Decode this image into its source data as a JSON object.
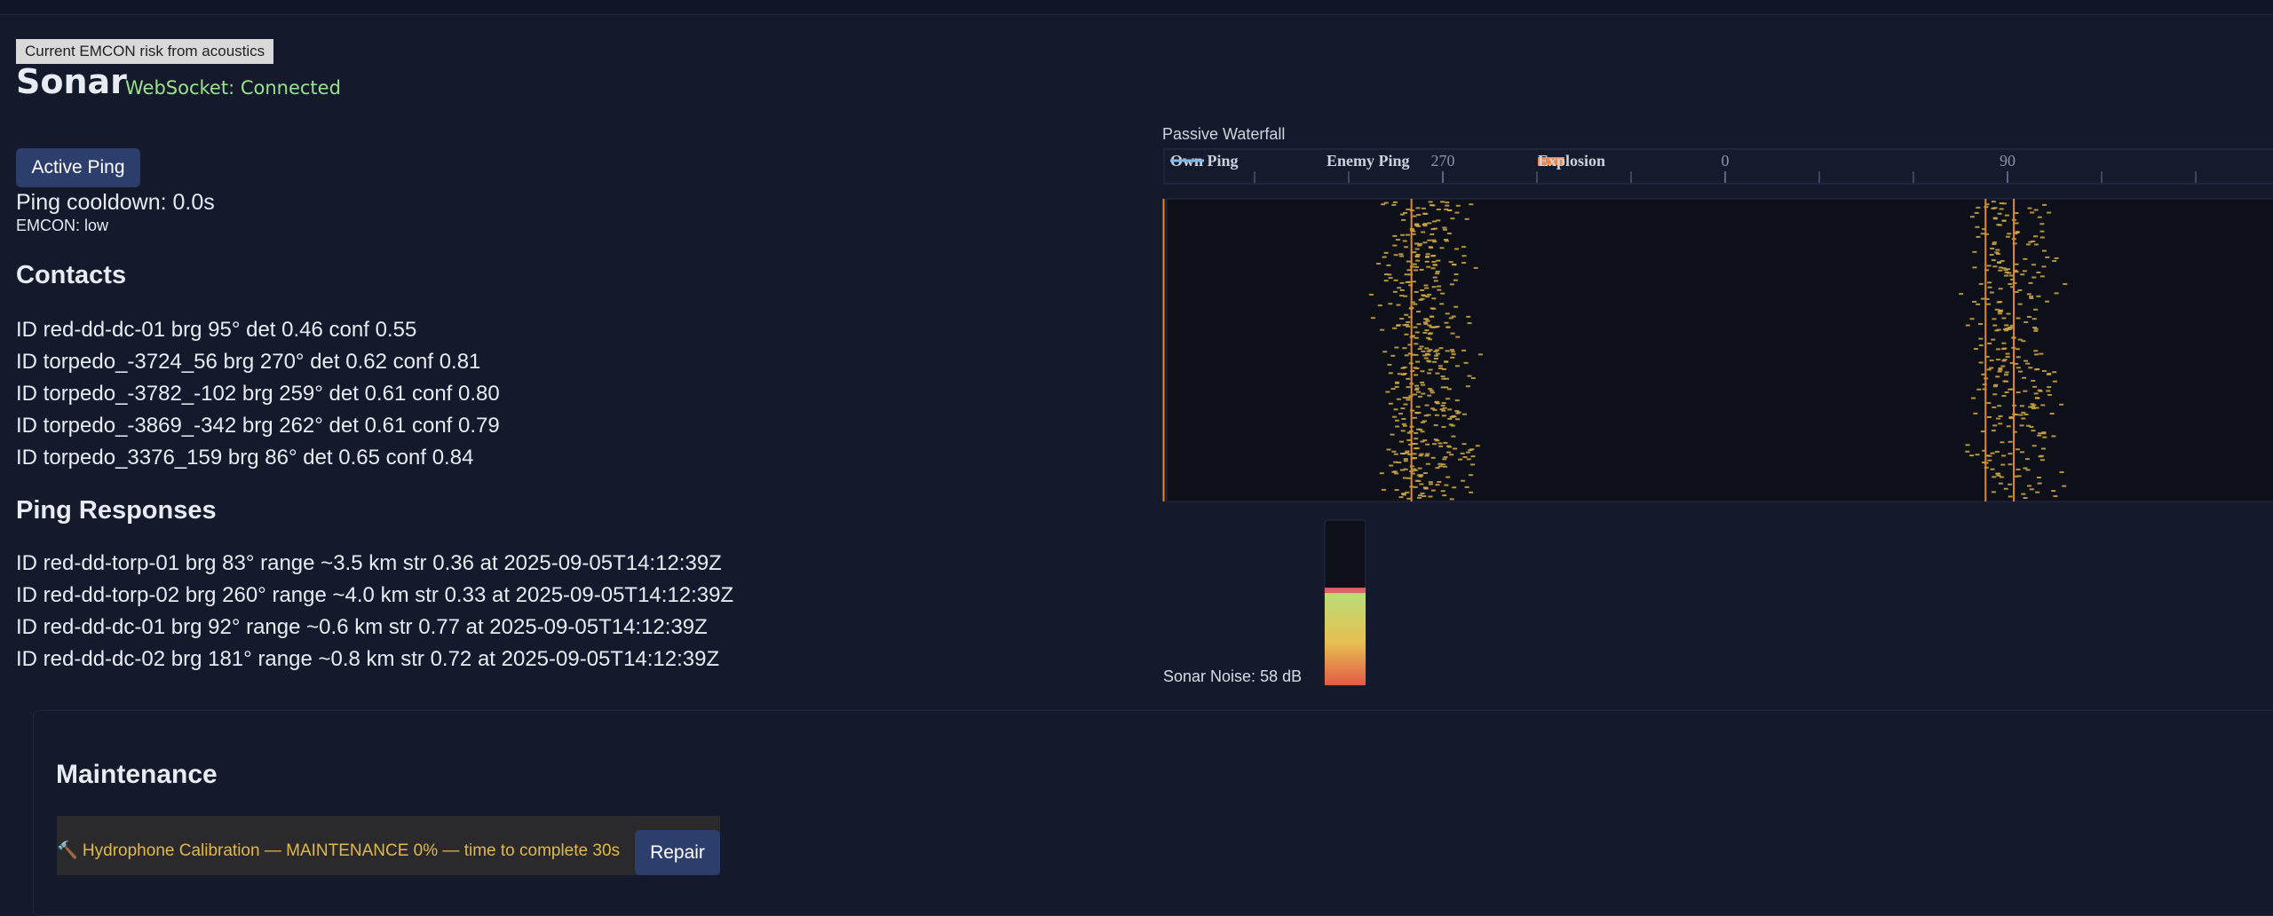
{
  "header": {
    "tooltip": "Current EMCON risk from acoustics",
    "title": "Sonar",
    "status": "WebSocket: Connected"
  },
  "controls": {
    "button": "Active Ping",
    "cooldown": "Ping cooldown: 0.0s",
    "emcon": "EMCON: low"
  },
  "labels": {
    "id": "ID",
    "brg": "brg",
    "deg": "°",
    "det": "det",
    "conf": "conf",
    "range": "range",
    "str": "str",
    "at": "at"
  },
  "contacts": {
    "heading": "Contacts",
    "items": [
      {
        "id": "red-dd-dc-01",
        "brg": 95,
        "det": "0.46",
        "conf": "0.55"
      },
      {
        "id": "torpedo_-3724_56",
        "brg": 270,
        "det": "0.62",
        "conf": "0.81"
      },
      {
        "id": "torpedo_-3782_-102",
        "brg": 259,
        "det": "0.61",
        "conf": "0.80"
      },
      {
        "id": "torpedo_-3869_-342",
        "brg": 262,
        "det": "0.61",
        "conf": "0.79"
      },
      {
        "id": "torpedo_3376_159",
        "brg": 86,
        "det": "0.65",
        "conf": "0.84"
      }
    ]
  },
  "ping_responses": {
    "heading": "Ping Responses",
    "items": [
      {
        "id": "red-dd-torp-01",
        "brg": 83,
        "range": "~3.5 km",
        "str": "0.36",
        "at": "2025-09-05T14:12:39Z"
      },
      {
        "id": "red-dd-torp-02",
        "brg": 260,
        "range": "~4.0 km",
        "str": "0.33",
        "at": "2025-09-05T14:12:39Z"
      },
      {
        "id": "red-dd-dc-01",
        "brg": 92,
        "range": "~0.6 km",
        "str": "0.77",
        "at": "2025-09-05T14:12:39Z"
      },
      {
        "id": "red-dd-dc-02",
        "brg": 181,
        "range": "~0.8 km",
        "str": "0.72",
        "at": "2025-09-05T14:12:39Z"
      }
    ]
  },
  "waterfall": {
    "title": "Passive Waterfall",
    "legend": [
      {
        "label": "Own Ping",
        "color": "#7ab8e8"
      },
      {
        "label": "Enemy Ping"
      },
      {
        "label": "Explosion",
        "color": "#e8894a"
      }
    ],
    "xlim": [
      -180,
      180
    ],
    "xticks": [
      270,
      0,
      90
    ],
    "trace_color": "#d4ac48",
    "ping_color": "#e0892e"
  },
  "noise": {
    "label": "Sonar Noise:",
    "value": 58,
    "unit": "dB",
    "ylim": [
      0,
      100
    ]
  },
  "maintenance": {
    "heading": "Maintenance",
    "item": "🔨 Hydrophone Calibration — MAINTENANCE 0% — time to complete 30s",
    "button": "Repair"
  }
}
